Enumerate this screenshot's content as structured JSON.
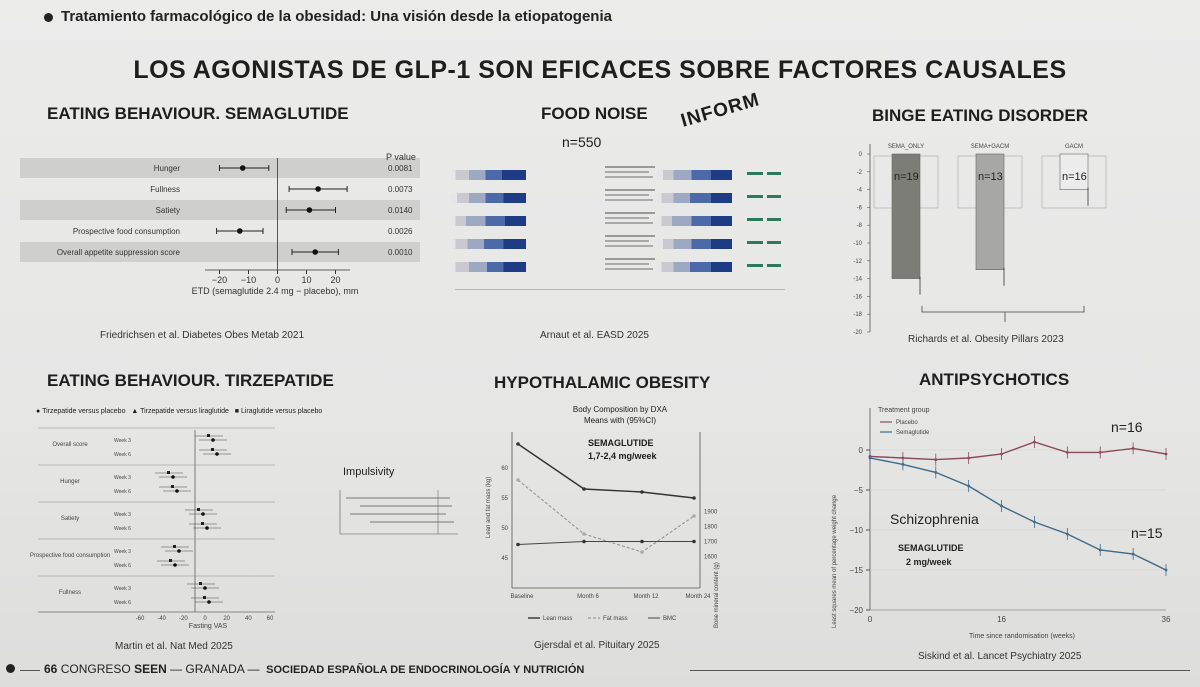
{
  "header": {
    "subtitle": "Tratamiento farmacológico de la obesidad: Una visión desde la etiopatogenia"
  },
  "main_title": "LOS AGONISTAS DE GLP-1 SON EFICACES SOBRE FACTORES CAUSALES",
  "semaglutide": {
    "title": "EATING BEHAVIOUR. SEMAGLUTIDE",
    "pvalue_header": "P value",
    "rows": [
      {
        "label": "Hunger",
        "est": -12,
        "lo": -20,
        "hi": -3,
        "p": "0.0081"
      },
      {
        "label": "Fullness",
        "est": 14,
        "lo": 4,
        "hi": 24,
        "p": "0.0073"
      },
      {
        "label": "Satiety",
        "est": 11,
        "lo": 3,
        "hi": 20,
        "p": "0.0140"
      },
      {
        "label": "Prospective food consumption",
        "est": -13,
        "lo": -21,
        "hi": -5,
        "p": "0.0026"
      },
      {
        "label": "Overall appetite suppression score",
        "est": 13,
        "lo": 5,
        "hi": 21,
        "p": "0.0010"
      }
    ],
    "ticks": [
      "−20",
      "−10",
      "0",
      "10",
      "20"
    ],
    "xlabel": "ETD (semaglutide 2.4 mg − placebo), mm",
    "citation": "Friedrichsen et al. Diabetes Obes Metab 2021"
  },
  "food_noise": {
    "title": "FOOD NOISE",
    "n": "n=550",
    "handwritten": "INFORM",
    "citation": "Arnaut et al. EASD 2025"
  },
  "binge": {
    "title": "BINGE EATING DISORDER",
    "groups": [
      "SEMA_ONLY",
      "SEMA+GACM",
      "GACM"
    ],
    "n_labels": [
      "n=19",
      "n=13",
      "n=16"
    ],
    "citation": "Richards et al. Obesity Pillars 2023"
  },
  "tirzepatide": {
    "title": "EATING BEHAVIOUR. TIRZEPATIDE",
    "legend": [
      "Tirzepatide versus placebo",
      "Tirzepatide versus liraglutide",
      "Liraglutide versus placebo"
    ],
    "categories": [
      "Overall score",
      "Hunger",
      "Satiety",
      "Prospective food consumption",
      "Fullness"
    ],
    "weeks": [
      "Week 3",
      "Week 6"
    ],
    "impulsivity_label": "Impulsivity",
    "xlabel": "Fasting VAS",
    "citation": "Martin et al. Nat Med 2025"
  },
  "hypothalamic": {
    "title": "HYPOTHALAMIC OBESITY",
    "chart_title": "Body Composition by DXA",
    "chart_subtitle": "Means with (95%CI)",
    "annotation_line1": "SEMAGLUTIDE",
    "annotation_line2": "1,7-2,4 mg/week",
    "ylabel_left": "Lean and fat mass (kg)",
    "ylabel_right": "Bone mineral content (g)",
    "left_ticks": [
      "60",
      "55",
      "50",
      "45"
    ],
    "right_ticks": [
      "1900",
      "1800",
      "1700",
      "1600"
    ],
    "xticks": [
      "Baseline",
      "Month 6",
      "Month 12",
      "Month 24"
    ],
    "legend": [
      "Lean mass",
      "Fat mass",
      "BMC"
    ],
    "citation": "Gjersdal et al. Pituitary 2025"
  },
  "antipsychotics": {
    "title": "ANTIPSYCHOTICS",
    "legend_title": "Treatment group",
    "legend": [
      "Placebo",
      "Semaglutide"
    ],
    "n_placebo": "n=16",
    "n_sema": "n=15",
    "condition": "Schizophrenia",
    "annotation_line1": "SEMAGLUTIDE",
    "annotation_line2": "2 mg/week",
    "yticks": [
      "0",
      "−5",
      "−10",
      "−15",
      "−20"
    ],
    "xticks": [
      "0",
      "16",
      "36"
    ],
    "xlabel": "Time since randomisation (weeks)",
    "ylabel": "Least squares mean of percentage weight change",
    "citation": "Siskind et al. Lancet Psychiatry 2025"
  },
  "footer": {
    "number": "66",
    "congreso": "CONGRESO",
    "seen": "SEEN",
    "granada": "— GRANADA —",
    "society": "SOCIEDAD ESPAÑOLA DE ENDOCRINOLOGÍA Y NUTRICIÓN"
  },
  "chart_data": [
    {
      "type": "scatter",
      "title": "EATING BEHAVIOUR. SEMAGLUTIDE",
      "categories": [
        "Hunger",
        "Fullness",
        "Satiety",
        "Prospective food consumption",
        "Overall appetite suppression score"
      ],
      "values": [
        -12,
        14,
        11,
        -13,
        13
      ],
      "ci_low": [
        -20,
        4,
        3,
        -21,
        5
      ],
      "ci_high": [
        -3,
        24,
        20,
        -5,
        21
      ],
      "xlabel": "ETD (semaglutide 2.4 mg − placebo), mm",
      "xlim": [
        -25,
        25
      ]
    },
    {
      "type": "bar",
      "title": "BINGE EATING DISORDER",
      "categories": [
        "SEMA_ONLY",
        "SEMA+GACM",
        "GACM"
      ],
      "values": [
        -14,
        -13,
        -4
      ],
      "ylim": [
        -20,
        0
      ]
    },
    {
      "type": "line",
      "title": "Body Composition by DXA",
      "x": [
        "Baseline",
        "Month 6",
        "Month 12",
        "Month 24"
      ],
      "series": [
        {
          "name": "Lean mass",
          "values": [
            64,
            56.5,
            56,
            55
          ]
        },
        {
          "name": "Fat mass",
          "values": [
            58,
            49,
            46,
            52
          ]
        },
        {
          "name": "BMC",
          "values": [
            1680,
            1700,
            1700,
            1700
          ]
        }
      ]
    },
    {
      "type": "line",
      "title": "ANTIPSYCHOTICS",
      "x": [
        0,
        4,
        8,
        12,
        16,
        20,
        24,
        28,
        32,
        36
      ],
      "series": [
        {
          "name": "Placebo",
          "values": [
            -0.8,
            -1,
            -1.2,
            -1,
            -0.5,
            1,
            -0.3,
            -0.3,
            0.2,
            -0.5
          ]
        },
        {
          "name": "Semaglutide",
          "values": [
            -1,
            -1.8,
            -2.8,
            -4.5,
            -7,
            -9,
            -10.5,
            -12.5,
            -13,
            -15
          ]
        }
      ],
      "xlabel": "Time since randomisation (weeks)",
      "ylim": [
        -20,
        2
      ]
    }
  ]
}
